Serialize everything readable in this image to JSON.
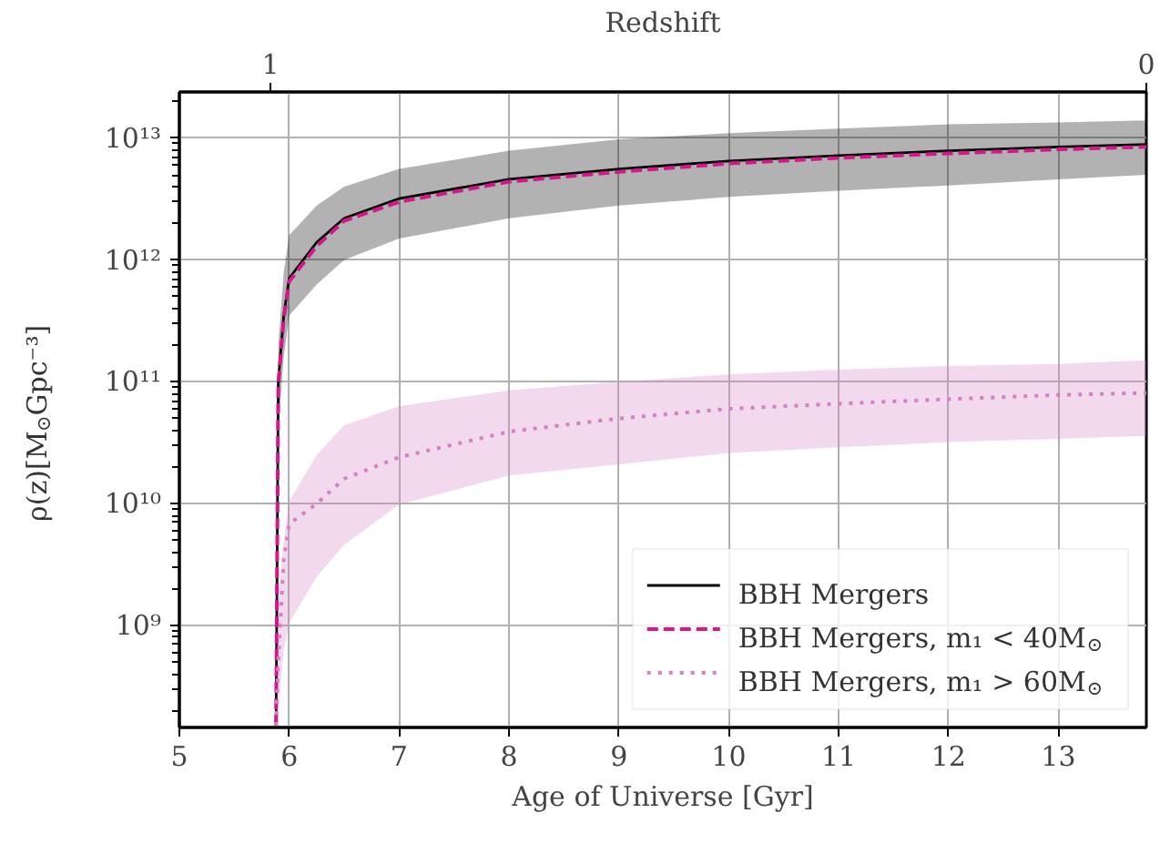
{
  "chart_data": {
    "type": "line",
    "xlabel": "Age of Universe [Gyr]",
    "ylabel": "ρ(z)[M$_{⊙}$Gpc⁻³]",
    "x2label": "Redshift",
    "x": [
      5.88,
      5.9,
      5.95,
      6,
      6.25,
      6.5,
      7,
      8,
      9,
      10,
      11,
      12,
      13,
      13.8
    ],
    "series": [
      {
        "name": "BBH Mergers",
        "color": "#000000",
        "line_style": "solid",
        "values": [
          160000000.0,
          100000000000.0,
          350000000000.0,
          710000000000.0,
          1400000000000.0,
          2200000000000.0,
          3200000000000.0,
          4600000000000.0,
          5600000000000.0,
          6500000000000.0,
          7200000000000.0,
          7900000000000.0,
          8500000000000.0,
          8900000000000.0
        ],
        "lower": [
          null,
          40000000000.0,
          160000000000.0,
          350000000000.0,
          630000000000.0,
          1000000000000.0,
          1500000000000.0,
          2200000000000.0,
          2800000000000.0,
          3300000000000.0,
          3700000000000.0,
          4100000000000.0,
          4600000000000.0,
          5000000000000.0
        ],
        "upper": [
          null,
          200000000000.0,
          800000000000.0,
          1600000000000.0,
          2800000000000.0,
          4000000000000.0,
          5600000000000.0,
          7900000000000.0,
          9800000000000.0,
          11000000000000.0,
          12000000000000.0,
          13000000000000.0,
          13500000000000.0,
          14000000000000.0
        ]
      },
      {
        "name": "BBH Mergers, m₁ < 40M$_{⊙}$",
        "color": "#d4178a",
        "line_style": "dashed",
        "values": [
          150000000.0,
          95000000000.0,
          330000000000.0,
          670000000000.0,
          1300000000000.0,
          2100000000000.0,
          3000000000000.0,
          4400000000000.0,
          5300000000000.0,
          6200000000000.0,
          6900000000000.0,
          7500000000000.0,
          8100000000000.0,
          8500000000000.0
        ]
      },
      {
        "name": "BBH Mergers, m₁ > 60M$_{⊙}$",
        "color": "#d580c4",
        "line_style": "dotted",
        "values": [
          150000000.0,
          500000000.0,
          3500000000.0,
          6800000000.0,
          10000000000.0,
          16000000000.0,
          24000000000.0,
          39000000000.0,
          50000000000.0,
          60000000000.0,
          66000000000.0,
          72000000000.0,
          78000000000.0,
          81000000000.0
        ],
        "lower": [
          null,
          200000000.0,
          630000000.0,
          1050000000.0,
          2500000000.0,
          4600000000.0,
          9800000000.0,
          17000000000.0,
          21000000000.0,
          26000000000.0,
          29000000000.0,
          32000000000.0,
          34000000000.0,
          36000000000.0
        ],
        "upper": [
          null,
          1600000000.0,
          5000000000.0,
          10500000000.0,
          25000000000.0,
          44000000000.0,
          63000000000.0,
          85000000000.0,
          100000000000.0,
          115000000000.0,
          126000000000.0,
          135000000000.0,
          140000000000.0,
          150000000000.0
        ]
      }
    ],
    "xlim": [
      5,
      13.8
    ],
    "xticks": [
      5,
      6,
      7,
      8,
      9,
      10,
      11,
      12,
      13
    ],
    "x2lim": [
      1.104,
      0
    ],
    "x2ticks": [
      1,
      0
    ],
    "ylim": [
      145000000.0,
      24000000000000.0
    ],
    "log": "y",
    "yticks": [
      {
        "value": 1000000000.0,
        "label": "10⁹"
      },
      {
        "value": 10000000000.0,
        "label": "10¹⁰"
      },
      {
        "value": 100000000000.0,
        "label": "10¹¹"
      },
      {
        "value": 1000000000000.0,
        "label": "10¹²"
      },
      {
        "value": 10000000000000.0,
        "label": "10¹³"
      }
    ],
    "grid": true,
    "legend": "bottom right"
  }
}
